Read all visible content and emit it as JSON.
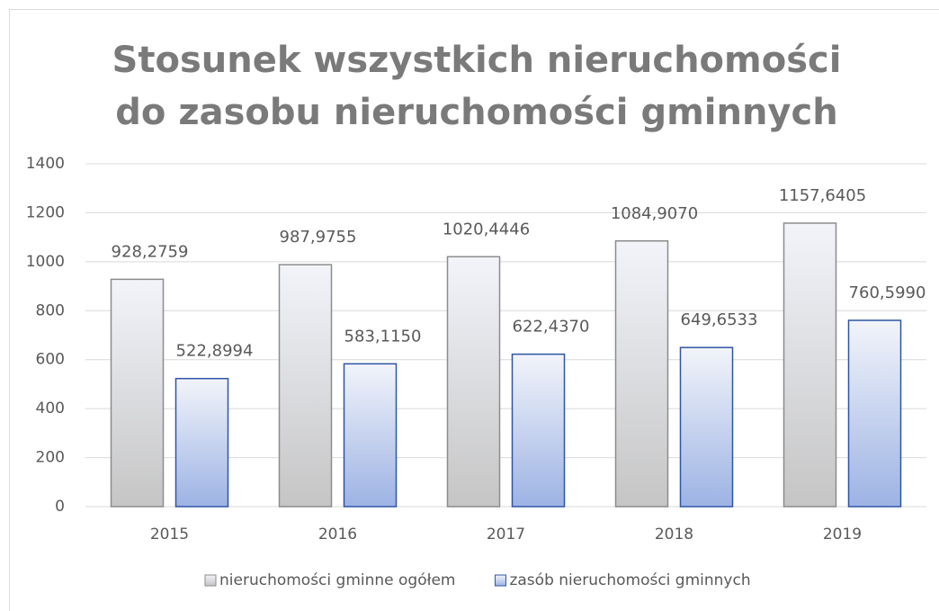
{
  "chart_data": {
    "type": "bar",
    "title": "Stosunek wszystkich nieruchomości do zasobu nieruchomości gminnych",
    "categories": [
      "2015",
      "2016",
      "2017",
      "2018",
      "2019"
    ],
    "series": [
      {
        "name": "nieruchomości gminne ogółem",
        "color": "#d4d4d4",
        "values": [
          928.2759,
          987.9755,
          1020.4446,
          1084.907,
          1157.6405
        ],
        "value_labels": [
          "928,2759",
          "987,9755",
          "1020,4446",
          "1084,9070",
          "1157,6405"
        ]
      },
      {
        "name": "zasób nieruchomości gminnych",
        "color": "#a9c1f5",
        "values": [
          522.8994,
          583.115,
          622.437,
          649.6533,
          760.599
        ],
        "value_labels": [
          "522,8994",
          "583,1150",
          "622,4370",
          "649,6533",
          "760,5990"
        ]
      }
    ],
    "ylim": [
      0,
      1400
    ],
    "yticks": [
      0,
      200,
      400,
      600,
      800,
      1000,
      1200,
      1400
    ],
    "grid": true,
    "legend": "bottom"
  }
}
